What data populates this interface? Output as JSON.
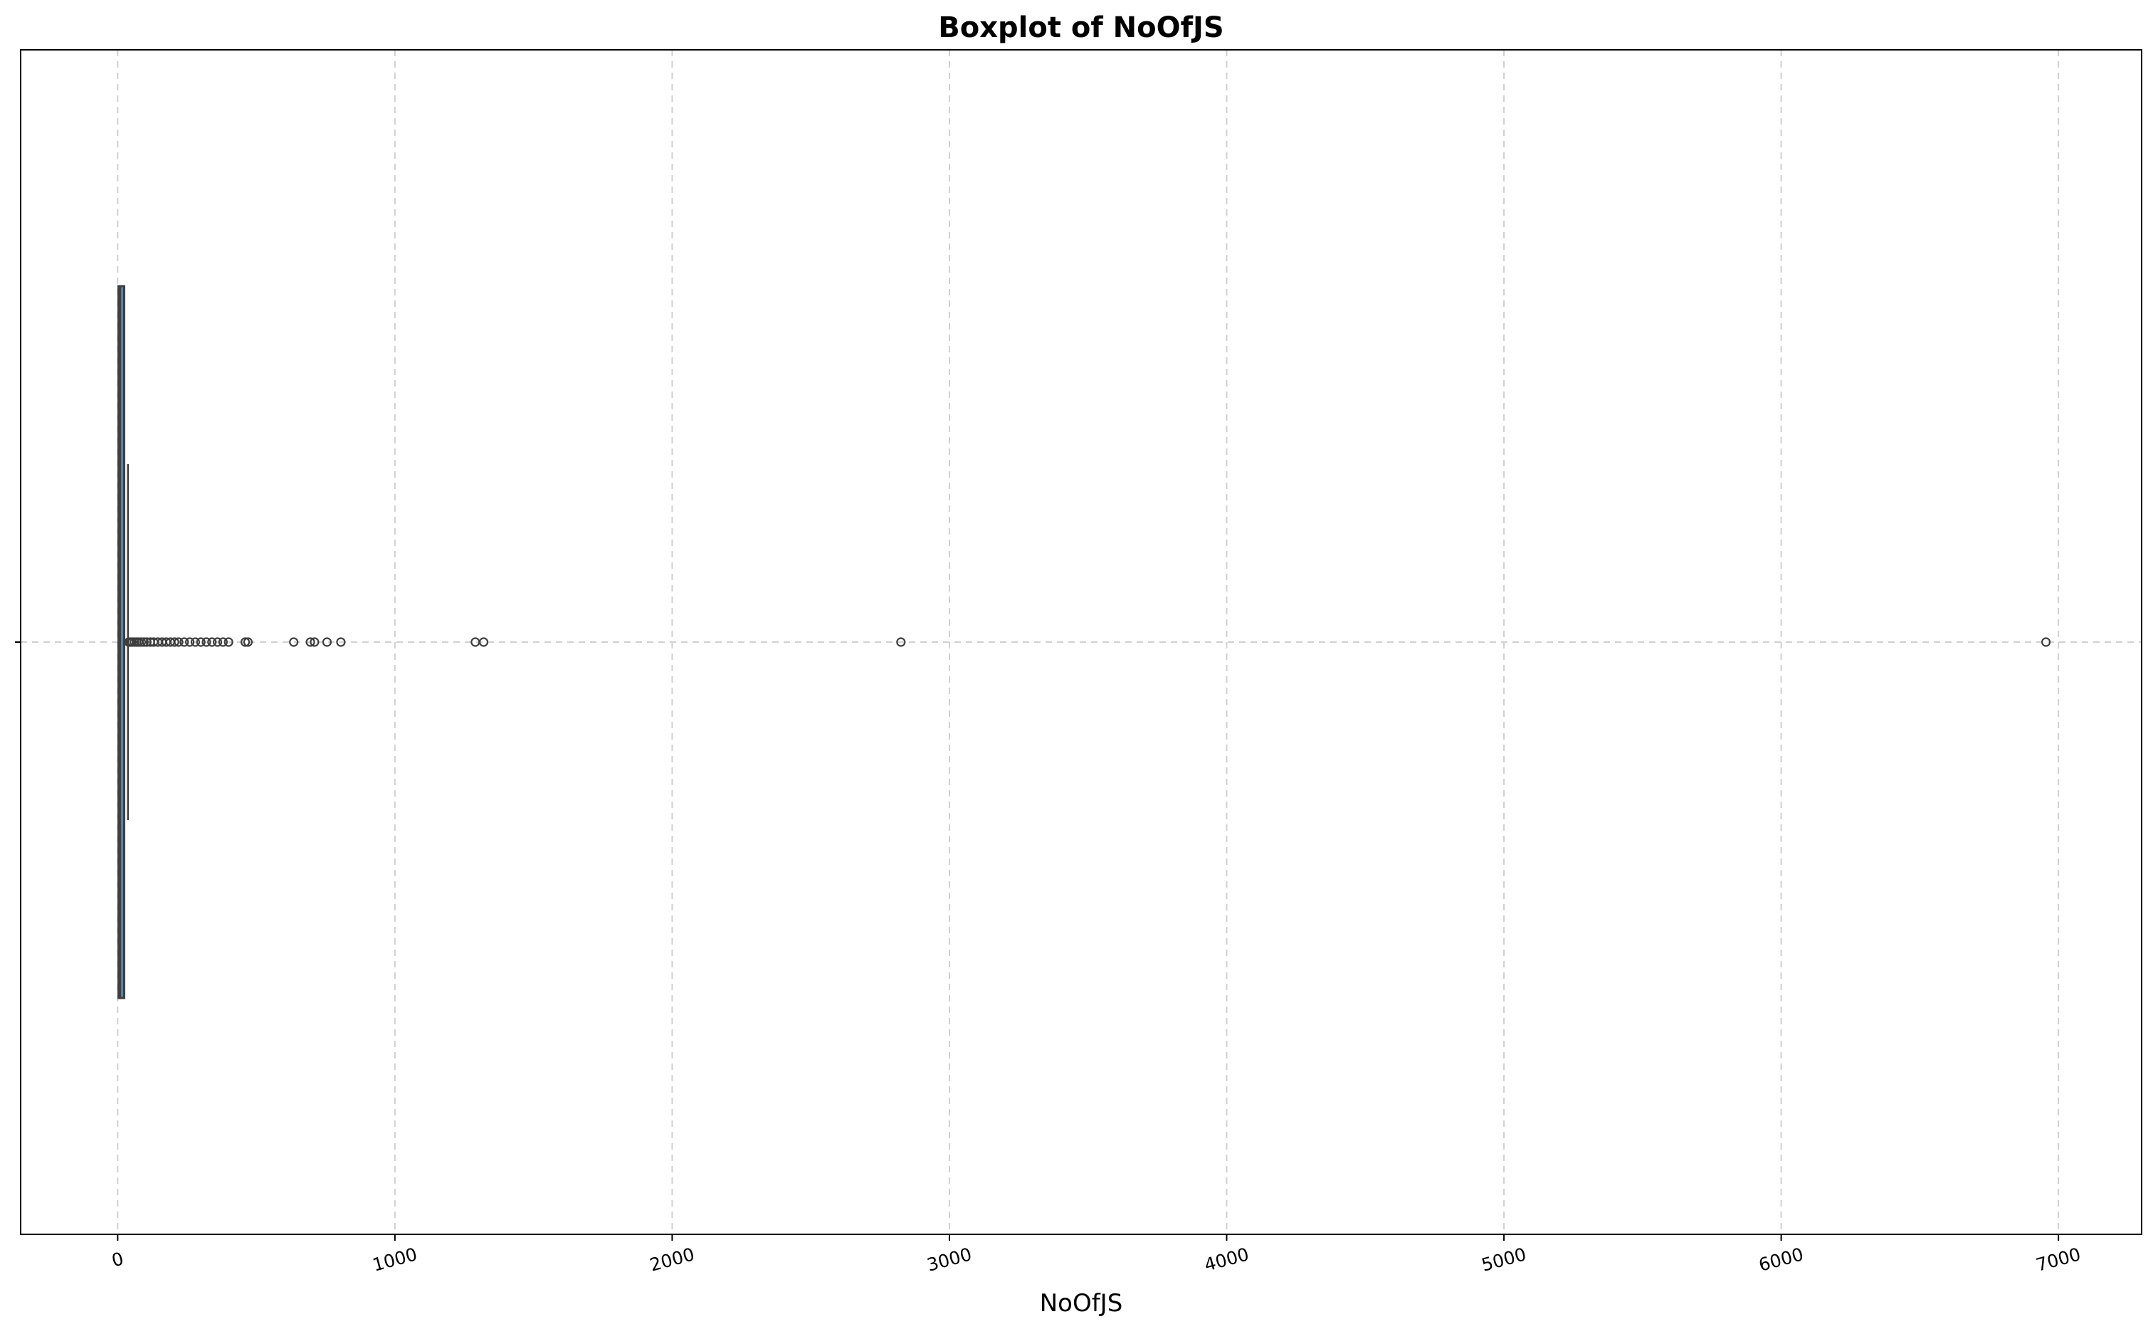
{
  "chart_data": {
    "type": "boxplot",
    "orientation": "horizontal",
    "title": "Boxplot of NoOfJS",
    "xlabel": "NoOfJS",
    "ylabel": "",
    "xlim": [
      -350,
      7300
    ],
    "xticks": [
      0,
      1000,
      2000,
      3000,
      4000,
      5000,
      6000,
      7000
    ],
    "xtick_labels": [
      "0",
      "1000",
      "2000",
      "3000",
      "4000",
      "5000",
      "6000",
      "7000"
    ],
    "grid": true,
    "series": [
      {
        "min": 0,
        "q1": 3,
        "median": 8,
        "q3": 18,
        "max": 37,
        "outliers": [
          40,
          45,
          52,
          60,
          68,
          75,
          85,
          95,
          105,
          118,
          130,
          145,
          160,
          175,
          190,
          205,
          220,
          240,
          260,
          280,
          300,
          320,
          340,
          360,
          380,
          400,
          460,
          470,
          635,
          695,
          710,
          755,
          805,
          1290,
          1320,
          2825,
          6955
        ]
      }
    ],
    "colors": {
      "box_edge": "#3f3f3f",
      "box_fill": "#5b7fa6",
      "grid": "#d0d0d0",
      "outlier_edge": "#3f3f3f"
    }
  }
}
